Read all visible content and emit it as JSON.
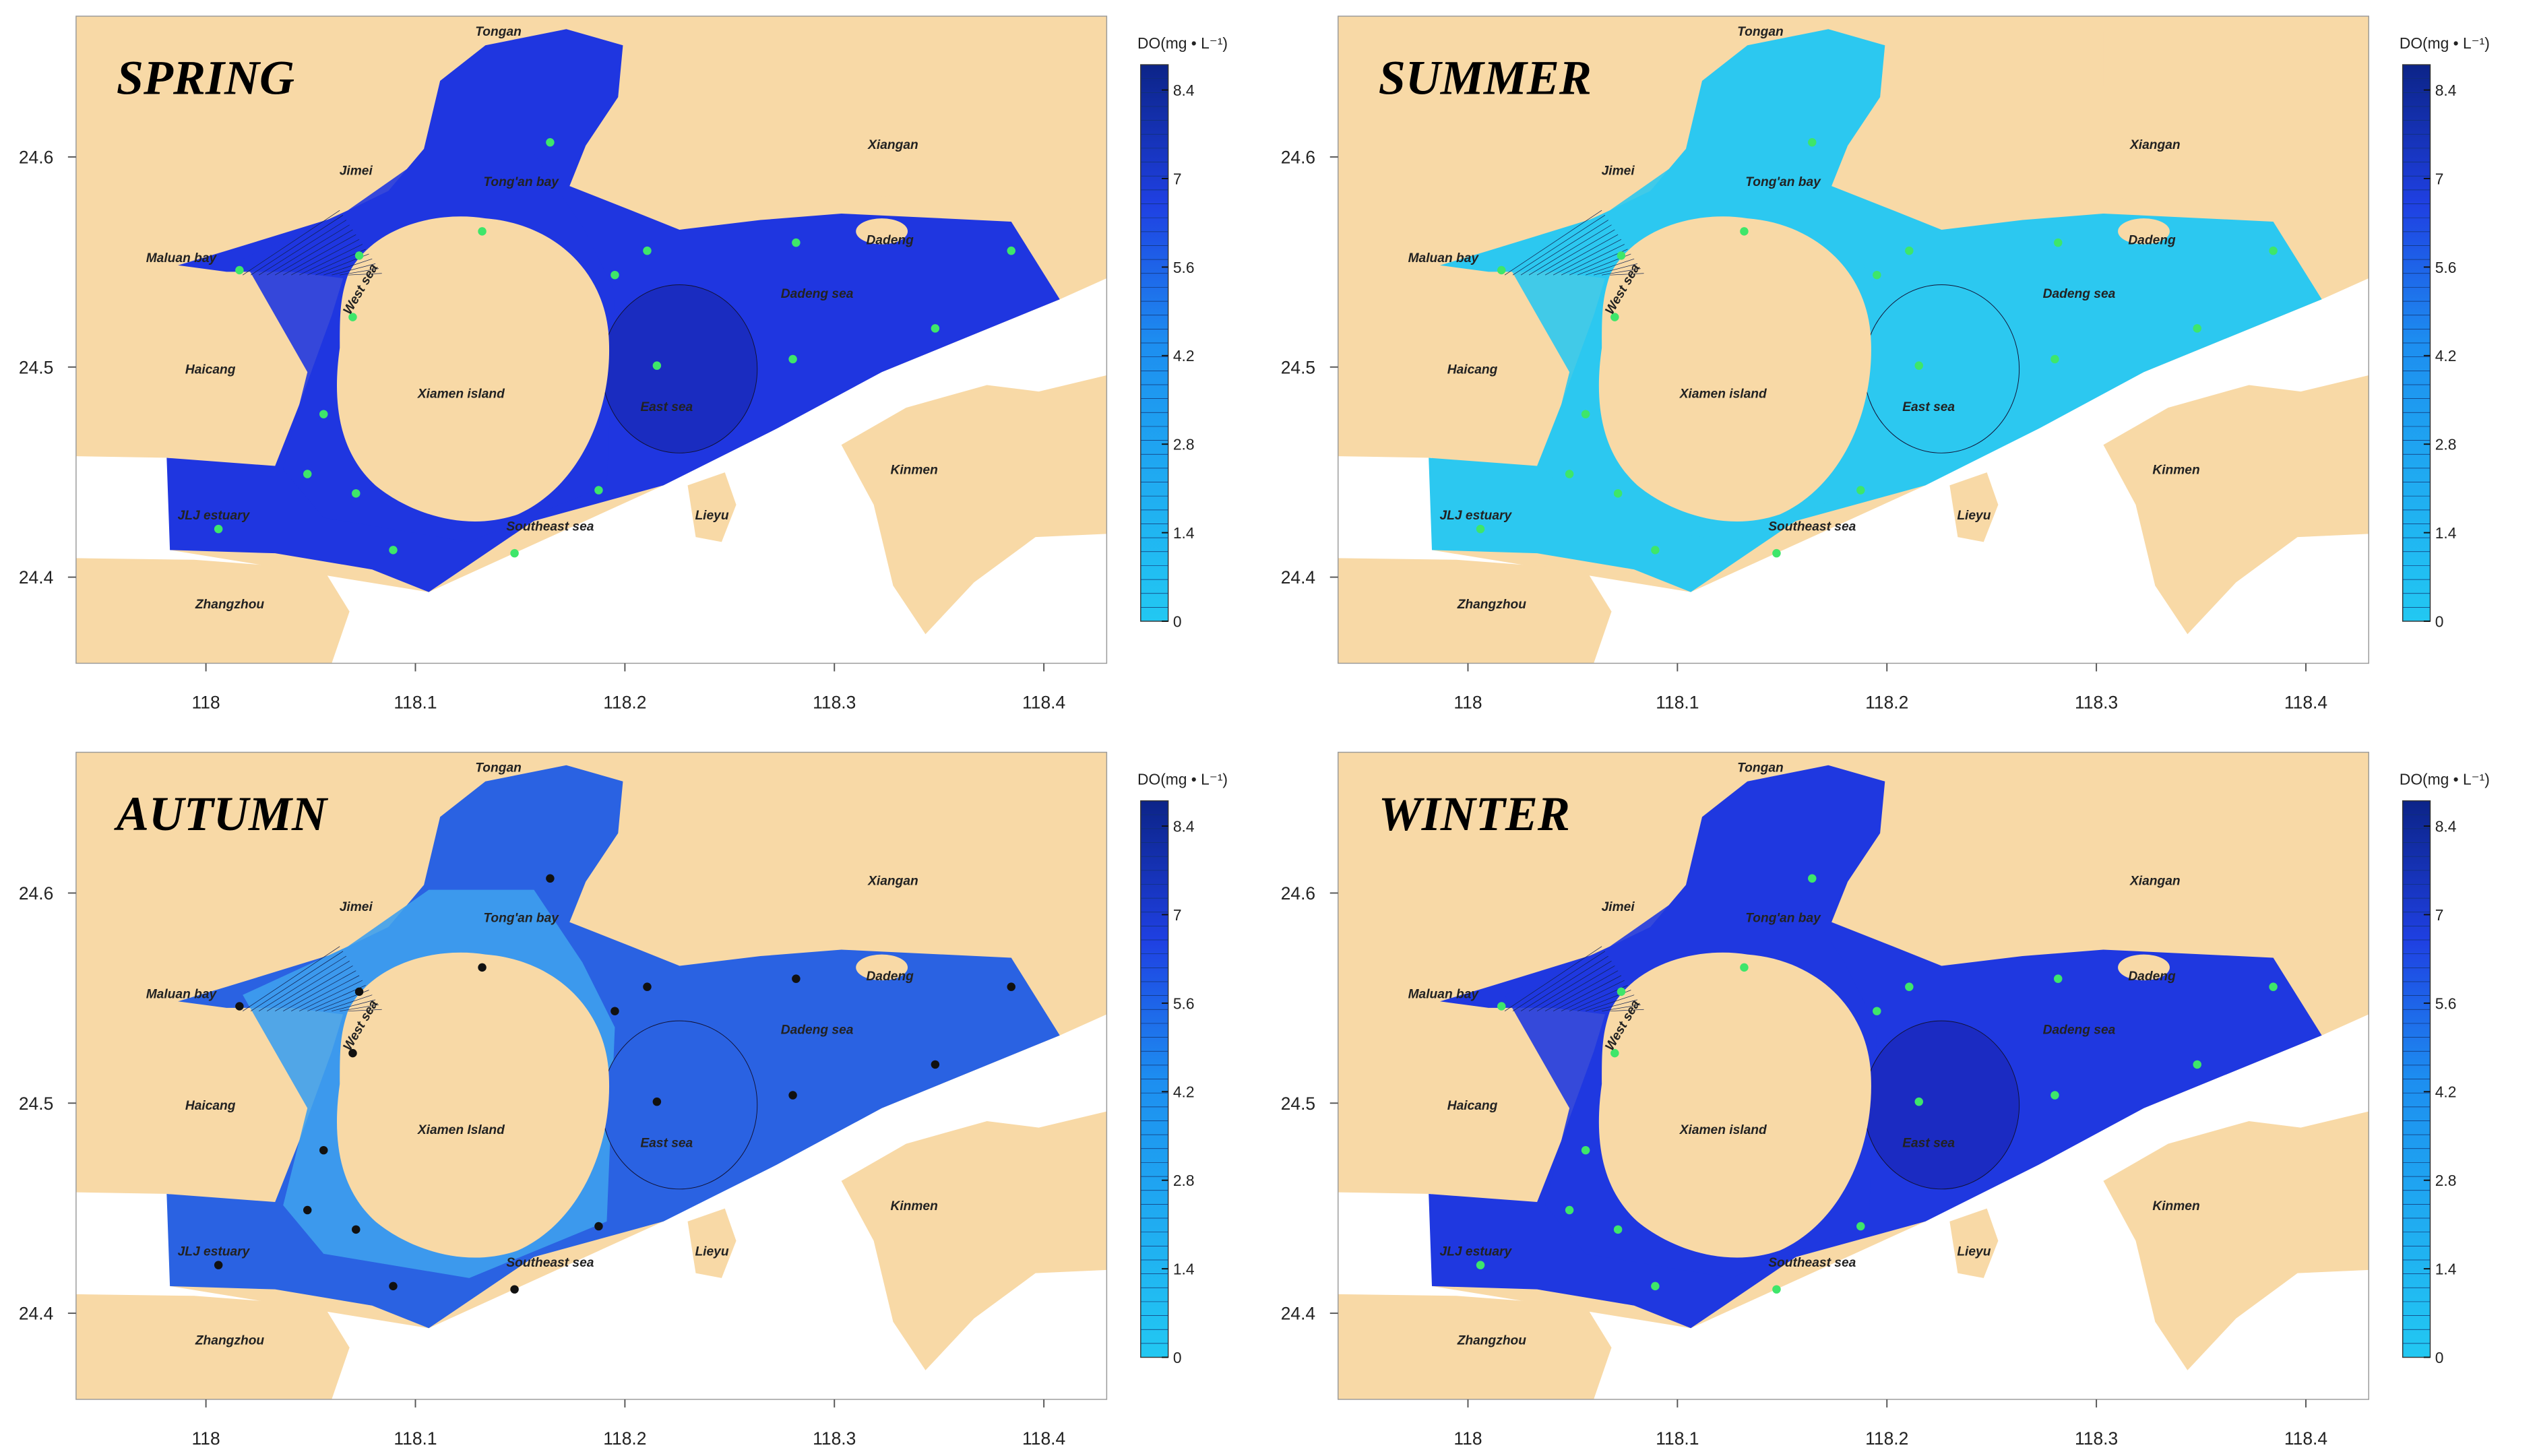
{
  "panels": [
    {
      "title": "SPRING",
      "water": "#1f36e0",
      "accent": "#1a2cc0",
      "inner": "#1f36e0",
      "station_color": "#3ee66a",
      "places": [
        "Tongan",
        "Jimei",
        "Tong'an bay",
        "Xiangan",
        "Maluan bay",
        "Dadeng",
        "West sea",
        "Dadeng sea",
        "Haicang",
        "Xiamen island",
        "East sea",
        "Kinmen",
        "JLJ estuary",
        "Lieyu",
        "Southeast sea",
        "Zhangzhou"
      ],
      "xlim": [
        117.938,
        118.43
      ],
      "ylim": [
        24.359,
        24.667
      ],
      "xticks": [
        118,
        118.1,
        118.2,
        118.3,
        118.4
      ],
      "yticks": [
        24.4,
        24.5,
        24.6
      ],
      "colorbar": {
        "title": "DO(mg • L⁻¹)",
        "lim": [
          0,
          8.8
        ],
        "ticks": [
          0,
          1.4,
          2.8,
          4.2,
          5.6,
          7,
          8.4
        ]
      }
    },
    {
      "title": "SUMMER",
      "water": "#2cc8f0",
      "accent": "#2cc8f0",
      "inner": "#2cc8f0",
      "station_color": "#3ee66a",
      "places": [
        "Tongan",
        "Jimei",
        "Tong'an bay",
        "Xiangan",
        "Maluan bay",
        "Dadeng",
        "West sea",
        "Dadeng sea",
        "Haicang",
        "Xiamen island",
        "East sea",
        "Kinmen",
        "JLJ estuary",
        "Lieyu",
        "Southeast sea",
        "Zhangzhou"
      ],
      "xlim": [
        117.938,
        118.43
      ],
      "ylim": [
        24.359,
        24.667
      ],
      "xticks": [
        118,
        118.1,
        118.2,
        118.3,
        118.4
      ],
      "yticks": [
        24.4,
        24.5,
        24.6
      ],
      "colorbar": {
        "title": "DO(mg • L⁻¹)",
        "lim": [
          0,
          8.8
        ],
        "ticks": [
          0,
          1.4,
          2.8,
          4.2,
          5.6,
          7,
          8.4
        ]
      }
    },
    {
      "title": "AUTUMN",
      "water": "#2a62e2",
      "accent": "#2a62e2",
      "inner": "#3ea0ee",
      "station_color": "#111111",
      "places": [
        "Tongan",
        "Jimei",
        "Tong'an bay",
        "Xiangan",
        "Maluan bay",
        "Dadeng",
        "West sea",
        "Dadeng sea",
        "Haicang",
        "Xiamen Island",
        "East sea",
        "Kinmen",
        "JLJ estuary",
        "Lieyu",
        "Southeast sea",
        "Zhangzhou"
      ],
      "xlim": [
        117.938,
        118.43
      ],
      "ylim": [
        24.359,
        24.667
      ],
      "xticks": [
        118,
        118.1,
        118.2,
        118.3,
        118.4
      ],
      "yticks": [
        24.4,
        24.5,
        24.6
      ],
      "colorbar": {
        "title": "DO(mg • L⁻¹)",
        "lim": [
          0,
          8.8
        ],
        "ticks": [
          0,
          1.4,
          2.8,
          4.2,
          5.6,
          7,
          8.4
        ]
      }
    },
    {
      "title": "WINTER",
      "water": "#1f38e0",
      "accent": "#1b2bc2",
      "inner": "#1f38e0",
      "station_color": "#3ee66a",
      "places": [
        "Tongan",
        "Jimei",
        "Tong'an bay",
        "Xiangan",
        "Maluan bay",
        "Dadeng",
        "West sea",
        "Dadeng sea",
        "Haicang",
        "Xiamen island",
        "East sea",
        "Kinmen",
        "JLJ estuary",
        "Lieyu",
        "Southeast sea",
        "Zhangzhou"
      ],
      "xlim": [
        117.938,
        118.43
      ],
      "ylim": [
        24.359,
        24.667
      ],
      "xticks": [
        118,
        118.1,
        118.2,
        118.3,
        118.4
      ],
      "yticks": [
        24.4,
        24.5,
        24.6
      ],
      "colorbar": {
        "title": "DO(mg • L⁻¹)",
        "lim": [
          0,
          8.8
        ],
        "ticks": [
          0,
          1.4,
          2.8,
          4.2,
          5.6,
          7,
          8.4
        ]
      }
    }
  ]
}
